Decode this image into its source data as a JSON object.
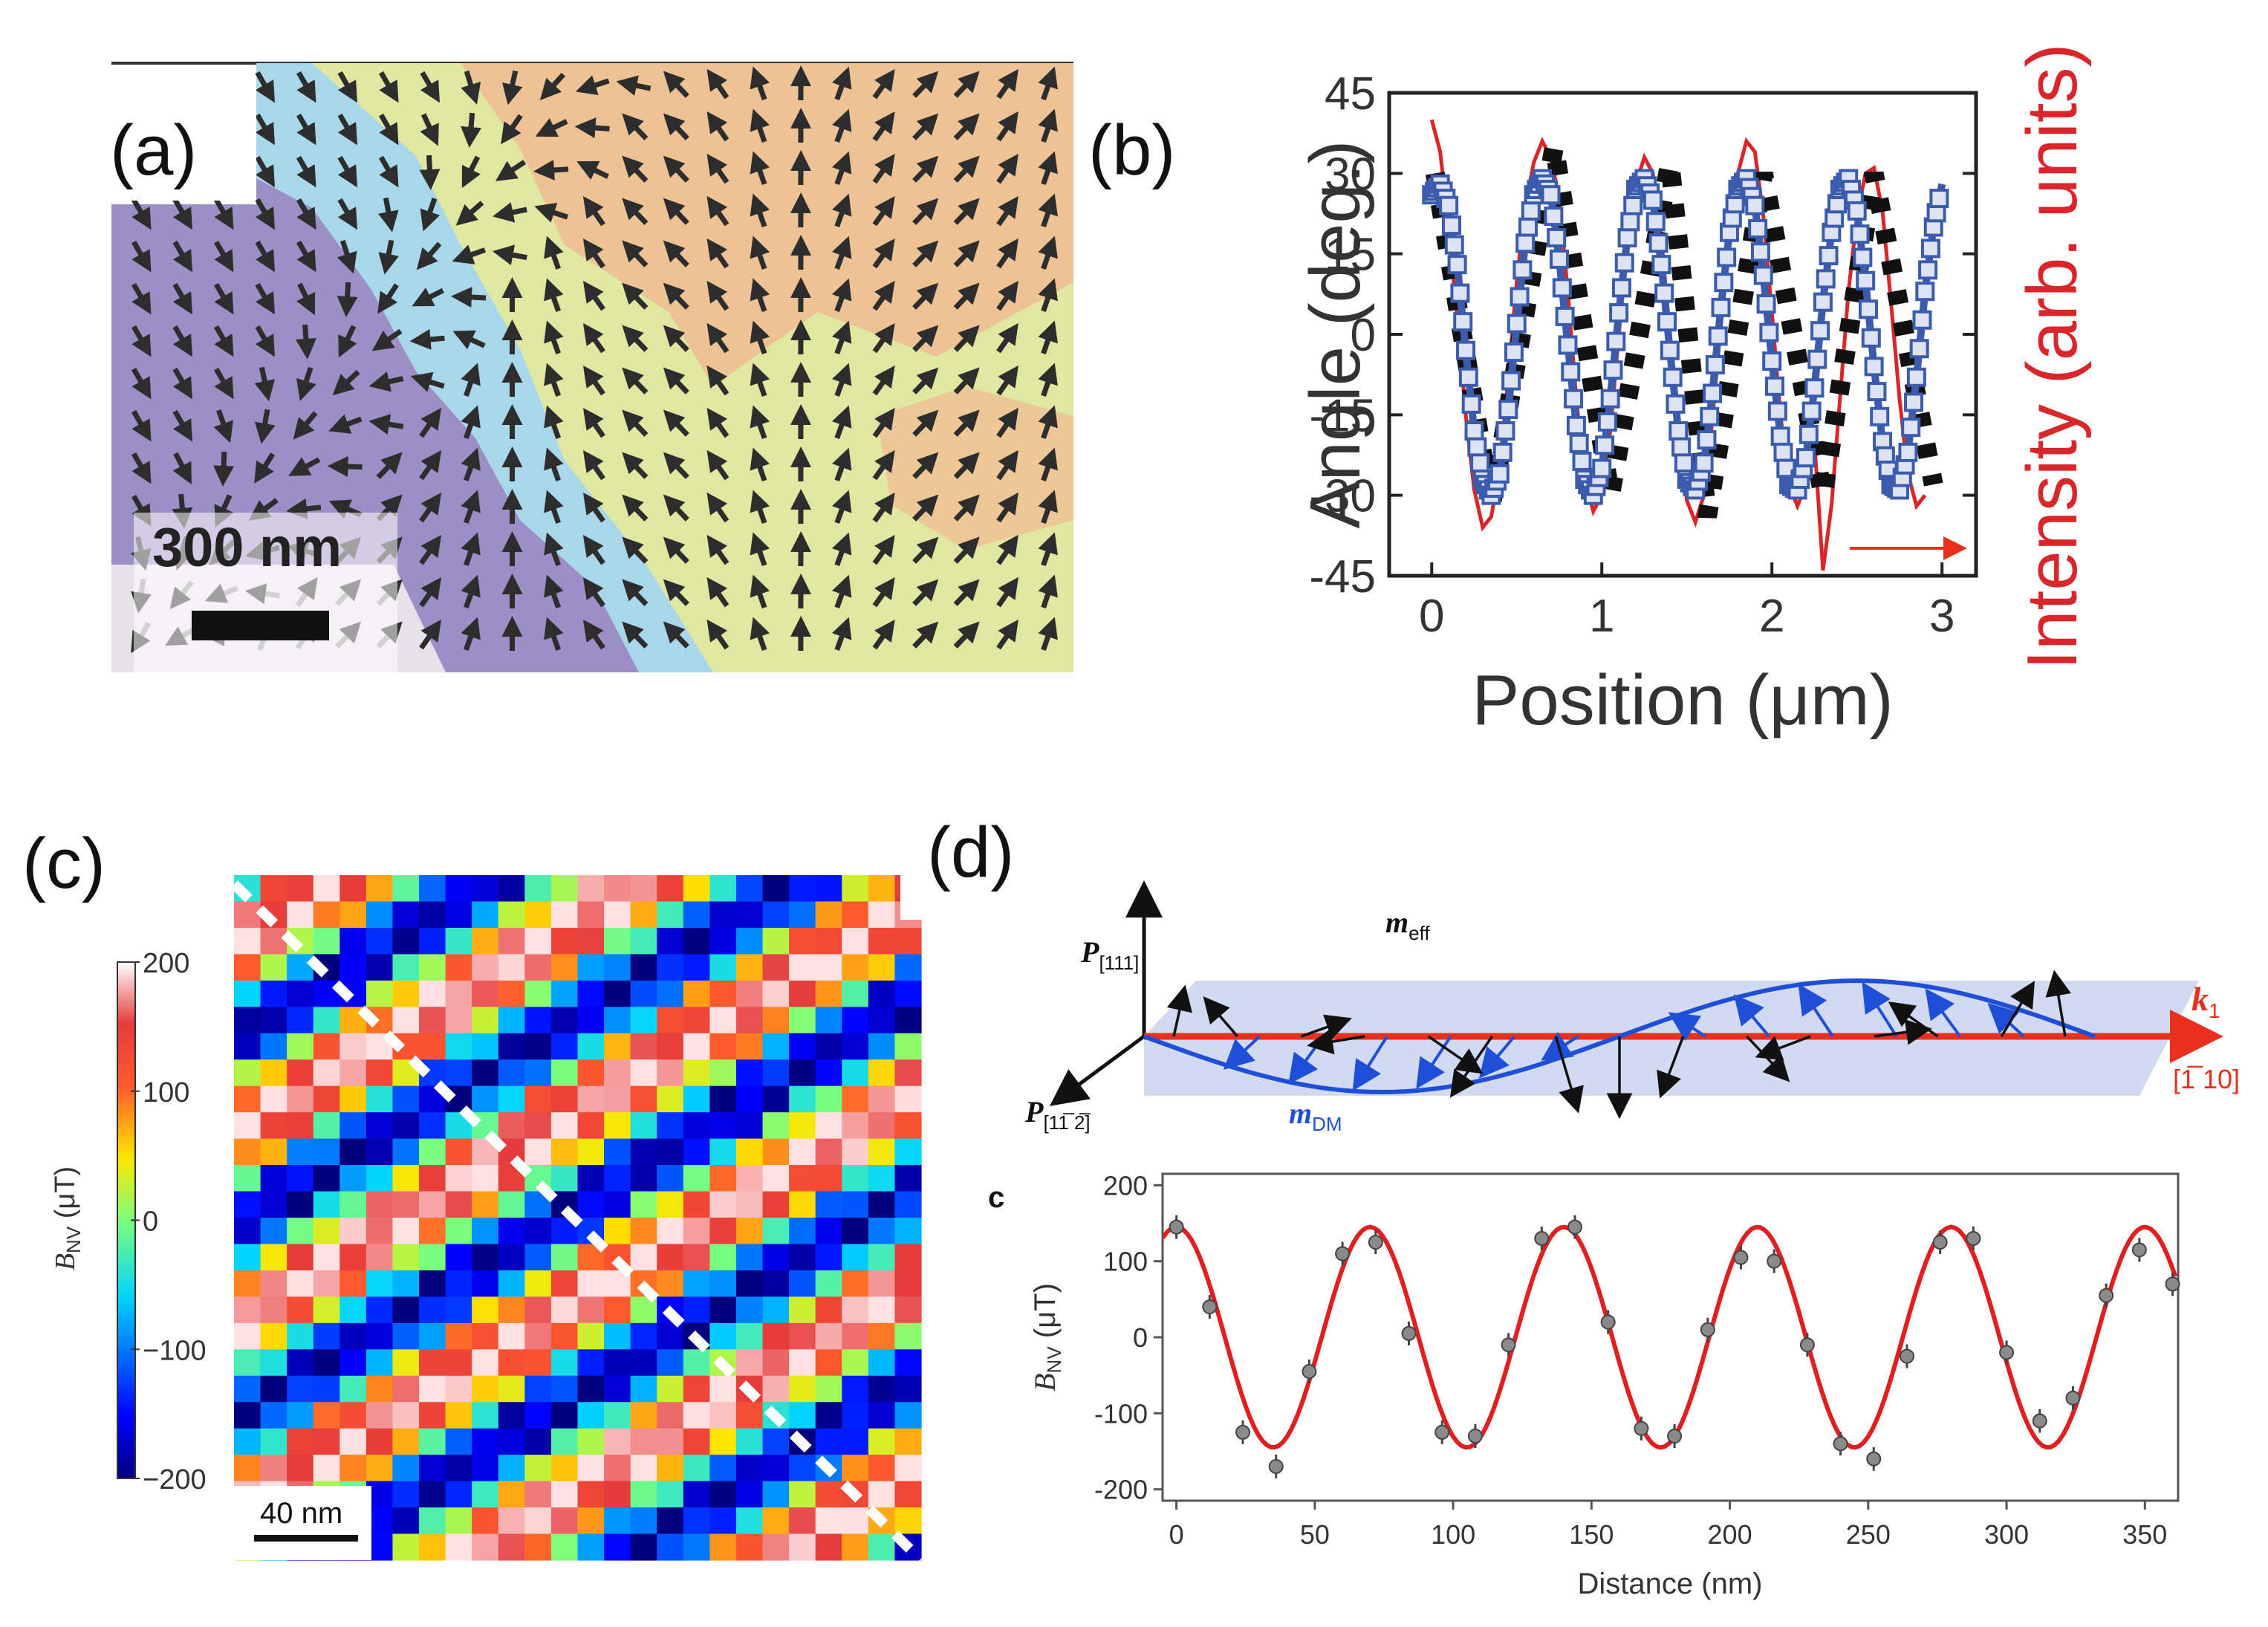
{
  "labels": {
    "a": "(a)",
    "b": "(b)",
    "c": "(c)",
    "d": "(d)",
    "sub_c": "c"
  },
  "panel_a": {
    "scalebar_label": "300 nm",
    "colors": {
      "purple": "#9b8fc6",
      "blue": "#a8d7ea",
      "yellow": "#dfe7a0",
      "orange": "#f2b792",
      "arrow": "#2d2d2d",
      "grey": "#e7e2ea"
    }
  },
  "panel_c": {
    "scalebar_label": "40 nm",
    "colorbar_label": "B",
    "colorbar_sub": "NV",
    "colorbar_unit": " (μT)",
    "colorbar_ticks": [
      "200",
      "100",
      "0",
      "−100",
      "−200"
    ],
    "colorbar_range": [
      -200,
      200
    ],
    "cells": 26,
    "stripe_period_cells": 7.2,
    "colors": {
      "dash": "#ffffff"
    }
  },
  "panel_d_diagram": {
    "p111": "P",
    "p111_sub": "[111]",
    "p112": "P",
    "p112_sub": "[11̅ 2̅]",
    "meff": "m",
    "meff_sub": "eff",
    "mdm": "m",
    "mdm_sub": "DM",
    "k1": "k",
    "k1_sub": "1",
    "dir": "[1̅ 10]",
    "colors": {
      "red": "#e8301c",
      "blue": "#1f4fd6",
      "plane": "#c9d3ef",
      "black": "#111111"
    }
  },
  "chart_data": [
    {
      "id": "panel-b",
      "type": "line",
      "title": "",
      "xlabel": "Position (μm)",
      "ylabel": "Angle (deg.)",
      "y2label": "Intensity (arb. units)",
      "xlim": [
        -0.25,
        3.2
      ],
      "ylim": [
        -45,
        45
      ],
      "xticks": [
        0,
        1,
        2,
        3
      ],
      "yticks": [
        45,
        30,
        15,
        0,
        -15,
        -30,
        -45
      ],
      "series": [
        {
          "name": "intensity",
          "color": "#d9262a",
          "x": [
            0.0,
            0.05,
            0.1,
            0.15,
            0.2,
            0.25,
            0.3,
            0.35,
            0.4,
            0.45,
            0.5,
            0.55,
            0.6,
            0.65,
            0.7,
            0.75,
            0.8,
            0.85,
            0.9,
            0.95,
            1.0,
            1.05,
            1.1,
            1.15,
            1.2,
            1.25,
            1.3,
            1.35,
            1.4,
            1.45,
            1.5,
            1.55,
            1.6,
            1.65,
            1.7,
            1.75,
            1.8,
            1.85,
            1.9,
            1.95,
            2.0,
            2.05,
            2.1,
            2.15,
            2.2,
            2.25,
            2.3,
            2.35,
            2.4,
            2.45,
            2.5,
            2.55,
            2.6,
            2.65,
            2.7,
            2.75,
            2.8,
            2.85,
            2.9
          ],
          "y": [
            40,
            34,
            20,
            3,
            -15,
            -29,
            -36,
            -34,
            -25,
            -8,
            10,
            24,
            32,
            36,
            33,
            25,
            8,
            -12,
            -27,
            -33,
            -30,
            -18,
            0,
            17,
            28,
            33,
            30,
            18,
            0,
            -18,
            -31,
            -35,
            -30,
            -16,
            2,
            19,
            30,
            36,
            34,
            22,
            4,
            -15,
            -28,
            -32,
            -28,
            -20,
            -44,
            -32,
            -12,
            8,
            22,
            30,
            31,
            23,
            6,
            -12,
            -26,
            -32,
            -30
          ]
        },
        {
          "name": "angle_fit",
          "color": "#3b5cad",
          "x": [
            0.0,
            0.05,
            0.1,
            0.15,
            0.2,
            0.25,
            0.3,
            0.35,
            0.4,
            0.45,
            0.5,
            0.55,
            0.6,
            0.65,
            0.7,
            0.75,
            0.8,
            0.85,
            0.9,
            0.95,
            1.0,
            1.05,
            1.1,
            1.15,
            1.2,
            1.25,
            1.3,
            1.35,
            1.4,
            1.45,
            1.5,
            1.55,
            1.6,
            1.65,
            1.7,
            1.75,
            1.8,
            1.85,
            1.9,
            1.95,
            2.0,
            2.05,
            2.1,
            2.15,
            2.2,
            2.25,
            2.3,
            2.35,
            2.4,
            2.45,
            2.5,
            2.55,
            2.6,
            2.65,
            2.7,
            2.75,
            2.8,
            2.85,
            2.9,
            2.95,
            3.0
          ],
          "y": [
            26,
            28,
            24,
            13,
            -3,
            -18,
            -27,
            -30,
            -26,
            -14,
            2,
            17,
            26,
            29,
            26,
            14,
            -2,
            -17,
            -27,
            -30,
            -25,
            -12,
            4,
            18,
            27,
            29,
            25,
            13,
            -3,
            -18,
            -27,
            -29,
            -24,
            -11,
            5,
            19,
            27,
            29,
            24,
            11,
            -5,
            -19,
            -28,
            -29,
            -23,
            -10,
            6,
            19,
            27,
            29,
            23,
            10,
            -6,
            -20,
            -28,
            -29,
            -22,
            -8,
            8,
            20,
            28
          ]
        },
        {
          "name": "angle_data",
          "color": "#111111",
          "x": [
            0.02,
            0.35,
            0.72,
            1.05,
            1.4,
            1.62,
            1.95,
            2.3,
            2.6,
            2.95
          ],
          "y": [
            30,
            -32,
            35,
            -30,
            32,
            -34,
            30,
            -30,
            30,
            -28
          ]
        }
      ]
    },
    {
      "id": "panel-d-plot",
      "type": "scatter",
      "title": "",
      "xlabel": "Distance (nm)",
      "ylabel": "B",
      "ylabel_sub": "NV",
      "ylabel_unit": " (μT)",
      "xlim": [
        -5,
        362
      ],
      "ylim": [
        -215,
        215
      ],
      "xticks": [
        0,
        50,
        100,
        150,
        200,
        250,
        300,
        350
      ],
      "yticks": [
        200,
        100,
        0,
        -100,
        -200
      ],
      "fit": {
        "name": "fit",
        "color": "#e02020",
        "amplitude": 145,
        "period_nm": 70,
        "phase_nm": 0
      },
      "points": {
        "name": "data",
        "color": "#777777",
        "x": [
          0,
          12,
          24,
          36,
          48,
          60,
          72,
          84,
          96,
          108,
          120,
          132,
          144,
          156,
          168,
          180,
          192,
          204,
          216,
          228,
          240,
          252,
          264,
          276,
          288,
          300,
          312,
          324,
          336,
          348,
          360
        ],
        "y": [
          145,
          40,
          -125,
          -170,
          -45,
          110,
          125,
          5,
          -125,
          -130,
          -10,
          130,
          145,
          20,
          -120,
          -130,
          10,
          105,
          100,
          -10,
          -140,
          -160,
          -25,
          125,
          130,
          -20,
          -110,
          -80,
          55,
          115,
          70
        ]
      }
    }
  ]
}
